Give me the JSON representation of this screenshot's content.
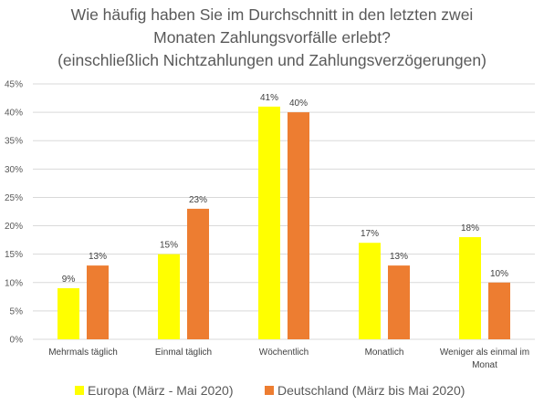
{
  "chart_data": {
    "type": "bar",
    "title_lines": [
      "Wie häufig haben Sie im Durchschnitt in den letzten zwei",
      "Monaten Zahlungsvorfälle erlebt?",
      "(einschließlich Nichtzahlungen und Zahlungsverzögerungen)"
    ],
    "categories": [
      [
        "Mehrmals täglich"
      ],
      [
        "Einmal täglich"
      ],
      [
        "Wöchentlich"
      ],
      [
        "Monatlich"
      ],
      [
        "Weniger als einmal im",
        "Monat"
      ]
    ],
    "series": [
      {
        "name": "Europa (März - Mai 2020)",
        "color": "#FFFF00",
        "values": [
          9,
          15,
          41,
          17,
          18
        ],
        "labels": [
          "9%",
          "15%",
          "41%",
          "17%",
          "18%"
        ]
      },
      {
        "name": "Deutschland (März bis Mai 2020)",
        "color": "#ED7D31",
        "values": [
          13,
          23,
          40,
          13,
          10
        ],
        "labels": [
          "13%",
          "23%",
          "40%",
          "13%",
          "10%"
        ]
      }
    ],
    "y_ticks": [
      "0%",
      "5%",
      "10%",
      "15%",
      "20%",
      "25%",
      "30%",
      "35%",
      "40%",
      "45%"
    ],
    "ylim": [
      0,
      45
    ],
    "grid": true,
    "legend_position": "bottom"
  }
}
